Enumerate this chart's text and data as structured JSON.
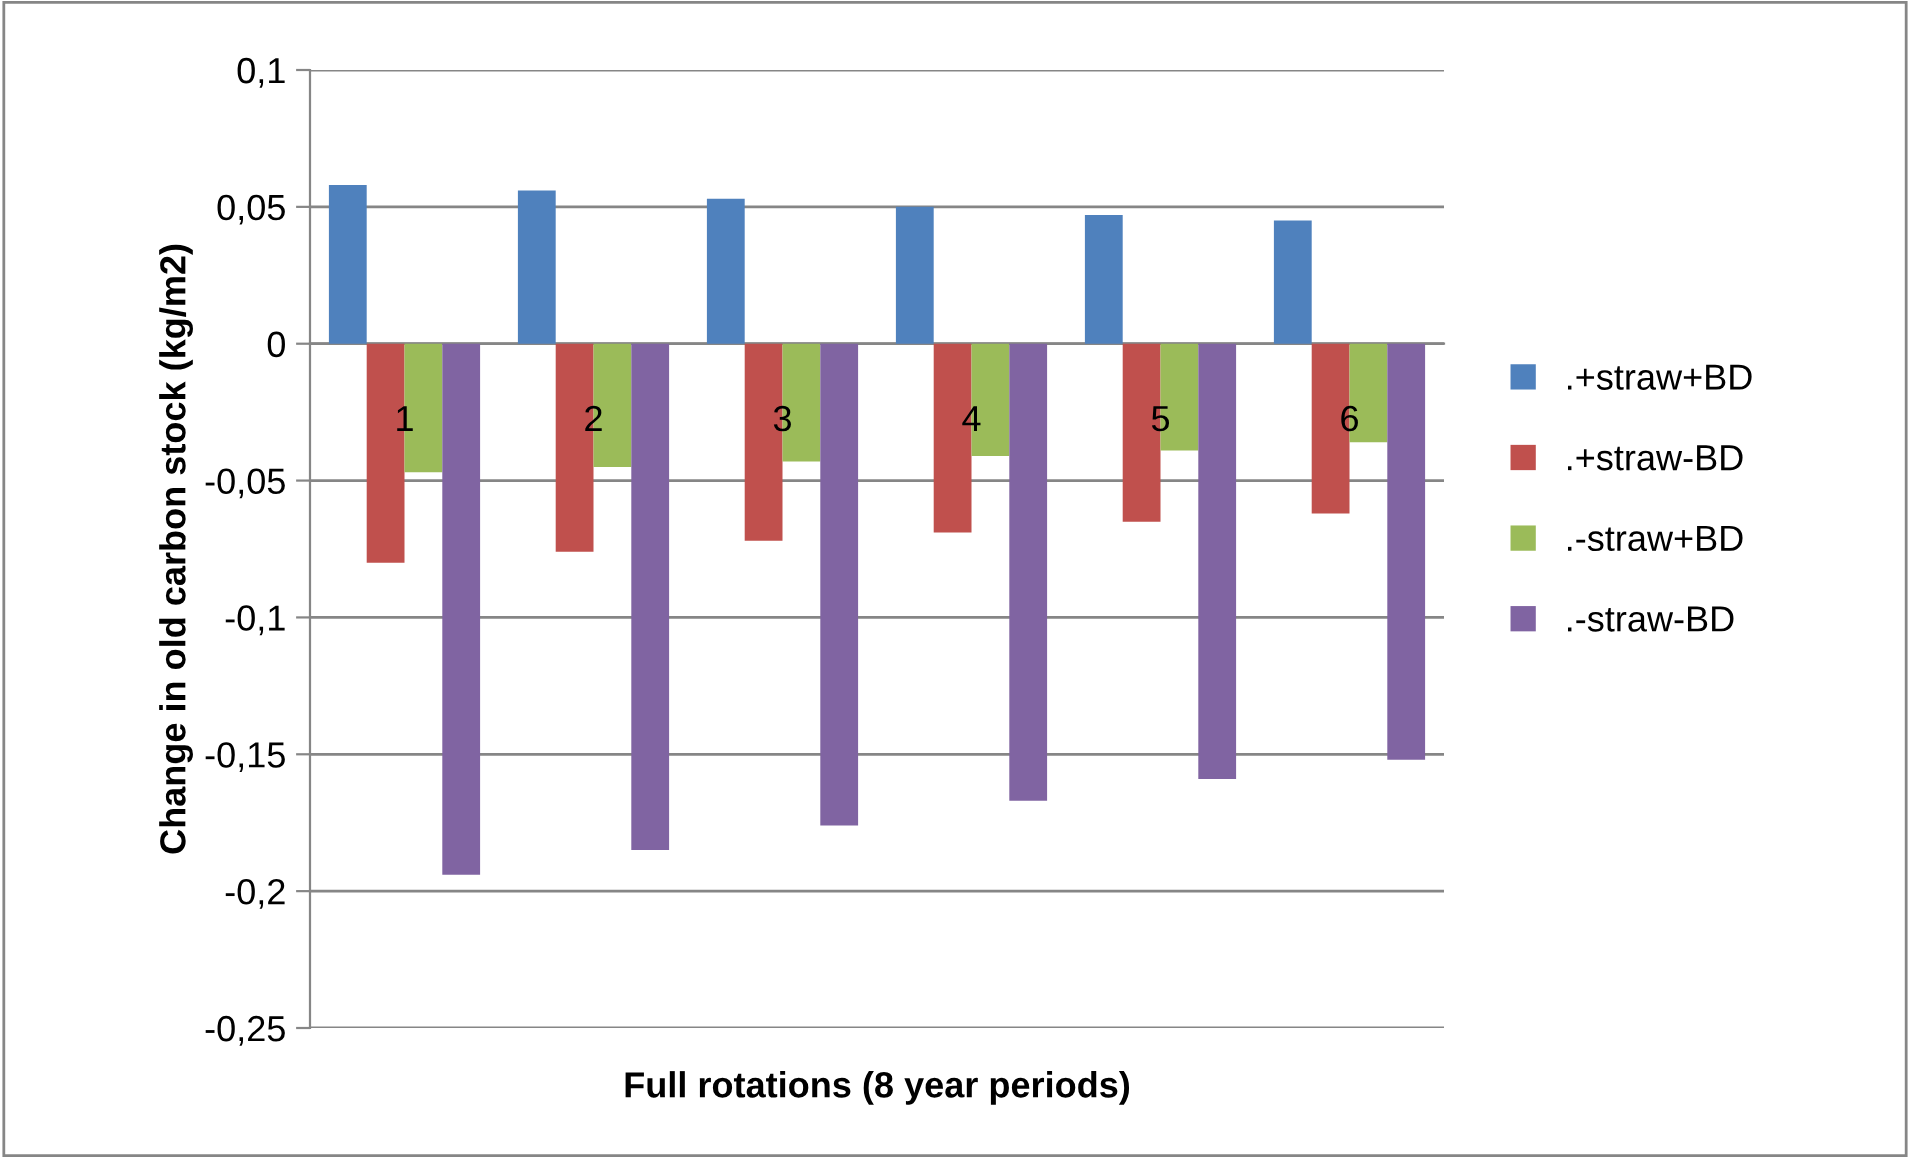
{
  "chart_data": {
    "type": "bar",
    "xlabel": "Full rotations (8 year periods)",
    "ylabel": "Change in old carbon stock (kg/m2)",
    "categories": [
      "1",
      "2",
      "3",
      "4",
      "5",
      "6"
    ],
    "series": [
      {
        "name": ".+straw+BD",
        "color": "#4f81bd",
        "values": [
          0.058,
          0.056,
          0.053,
          0.05,
          0.047,
          0.045
        ]
      },
      {
        "name": ".+straw-BD",
        "color": "#c0504d",
        "values": [
          -0.08,
          -0.076,
          -0.072,
          -0.069,
          -0.065,
          -0.062
        ]
      },
      {
        "name": ".-straw+BD",
        "color": "#9bbb59",
        "values": [
          -0.047,
          -0.045,
          -0.043,
          -0.041,
          -0.039,
          -0.036
        ]
      },
      {
        "name": ".-straw-BD",
        "color": "#8064a2",
        "values": [
          -0.194,
          -0.185,
          -0.176,
          -0.167,
          -0.159,
          -0.152
        ]
      }
    ],
    "ylim": [
      -0.25,
      0.1
    ],
    "yticks": [
      {
        "value": -0.25,
        "label": "-0,25"
      },
      {
        "value": -0.2,
        "label": "-0,2"
      },
      {
        "value": -0.15,
        "label": "-0,15"
      },
      {
        "value": -0.1,
        "label": "-0,1"
      },
      {
        "value": -0.05,
        "label": "-0,05"
      },
      0,
      {
        "value": 0.05,
        "label": "0,05"
      },
      {
        "value": 0.1,
        "label": "0,1"
      }
    ],
    "grid": "y",
    "legend": "right"
  }
}
